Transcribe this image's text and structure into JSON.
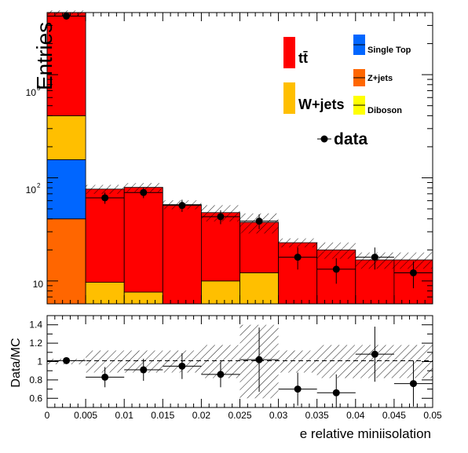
{
  "chart_data": [
    {
      "type": "bar",
      "panel": "main",
      "stacked": true,
      "log_y": true,
      "ylabel": "Entries",
      "xlim": [
        0,
        0.05
      ],
      "ylim": [
        6,
        4000
      ],
      "y_tick_labels": [
        "10",
        "10",
        "10"
      ],
      "y_tick_exponents": [
        "",
        "2",
        "3"
      ],
      "y_tick_values": [
        10,
        100,
        1000
      ],
      "bin_edges": [
        0,
        0.005,
        0.01,
        0.015,
        0.02,
        0.025,
        0.03,
        0.035,
        0.04,
        0.045,
        0.05
      ],
      "series": [
        {
          "name": "Diboson",
          "color": "#ffff00",
          "values": [
            0,
            0,
            0,
            0,
            0,
            0,
            0,
            0,
            0,
            0
          ]
        },
        {
          "name": "Z+jets",
          "color": "#ff6600",
          "values": [
            40,
            0,
            0,
            0,
            0,
            0,
            0,
            0,
            0,
            0
          ]
        },
        {
          "name": "Single Top",
          "color": "#0066ff",
          "values": [
            110,
            0,
            0,
            0,
            0,
            0,
            0,
            0,
            0,
            0
          ]
        },
        {
          "name": "W+jets",
          "color": "#ffbf00",
          "values": [
            250,
            9.7,
            7.8,
            0,
            10,
            12,
            0,
            0,
            0,
            0
          ]
        },
        {
          "name": "tt̄",
          "color": "#ff0000",
          "values": [
            3600,
            68,
            73,
            55,
            36,
            25,
            23.5,
            20,
            16,
            16
          ]
        }
      ],
      "mc_uncertainty": [
        0.05,
        0.1,
        0.1,
        0.1,
        0.18,
        0.22,
        0.1,
        0.18,
        0.18,
        0.18
      ],
      "data": {
        "name": "data",
        "x": [
          0.0025,
          0.0075,
          0.0125,
          0.0175,
          0.0225,
          0.0275,
          0.0325,
          0.0375,
          0.0425,
          0.0475
        ],
        "y": [
          3700,
          64,
          72,
          54,
          42,
          38,
          17,
          13,
          17,
          12
        ],
        "yerr": [
          60,
          8,
          8.5,
          7.3,
          6.5,
          6.2,
          4.1,
          3.6,
          4.1,
          3.5
        ]
      }
    },
    {
      "type": "scatter",
      "panel": "ratio",
      "ylabel": "Data/MC",
      "xlabel": "e relative miniisolation",
      "xlim": [
        0,
        0.05
      ],
      "ylim": [
        0.5,
        1.5
      ],
      "x_ticks": [
        0,
        0.005,
        0.01,
        0.015,
        0.02,
        0.025,
        0.03,
        0.035,
        0.04,
        0.045,
        0.05
      ],
      "x_tick_labels": [
        "0",
        "0.005",
        "0.01",
        "0.015",
        "0.02",
        "0.025",
        "0.03",
        "0.035",
        "0.04",
        "0.045",
        "0.05"
      ],
      "y_ticks": [
        0.6,
        0.8,
        1,
        1.2,
        1.4
      ],
      "y_tick_labels": [
        "0.6",
        "0.8",
        "1",
        "1.2",
        "1.4"
      ],
      "reference_line": 1,
      "x": [
        0.0025,
        0.0075,
        0.0125,
        0.0175,
        0.0225,
        0.0275,
        0.0325,
        0.0375,
        0.0425,
        0.0475
      ],
      "y": [
        1.01,
        0.83,
        0.91,
        0.95,
        0.86,
        1.02,
        0.7,
        0.66,
        1.08,
        0.76
      ],
      "yerr": [
        0.015,
        0.11,
        0.12,
        0.14,
        0.14,
        0.35,
        0.18,
        0.2,
        0.3,
        0.25
      ],
      "band": [
        0.03,
        0.12,
        0.12,
        0.12,
        0.18,
        0.4,
        0.12,
        0.18,
        0.18,
        0.18
      ]
    }
  ],
  "legend": {
    "entries": [
      {
        "label": "tt̄",
        "color": "#ff0000",
        "kind": "fill"
      },
      {
        "label": "Single Top",
        "color": "#0066ff",
        "kind": "fill"
      },
      {
        "label": "Z+jets",
        "color": "#ff6600",
        "kind": "fill"
      },
      {
        "label": "W+jets",
        "color": "#ffbf00",
        "kind": "fill"
      },
      {
        "label": "Diboson",
        "color": "#ffff00",
        "kind": "fill"
      },
      {
        "label": "data",
        "color": "#000000",
        "kind": "marker"
      }
    ]
  }
}
